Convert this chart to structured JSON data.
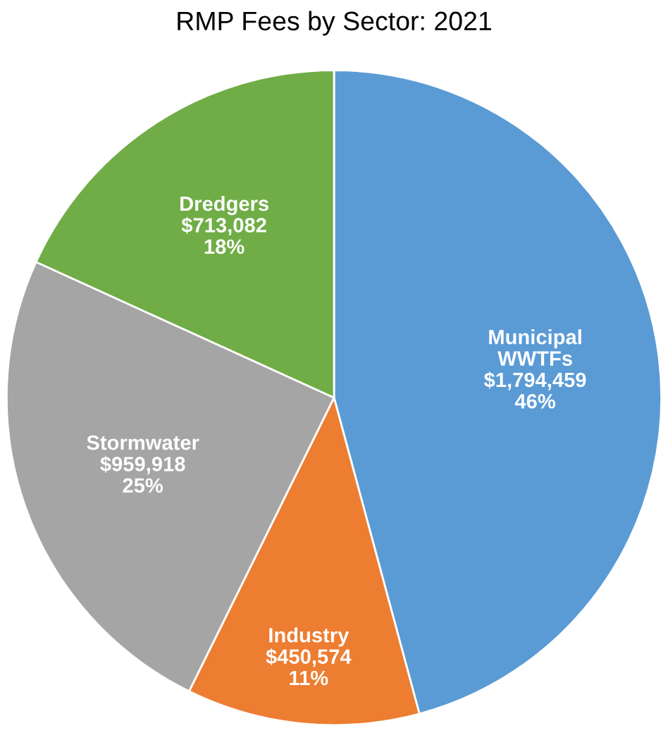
{
  "chart_data": {
    "type": "pie",
    "title": "RMP Fees by Sector: 2021",
    "categories": [
      "Municipal\nWWTFs",
      "Industry",
      "Stormwater",
      "Dredgers"
    ],
    "values": [
      1794459,
      450574,
      959918,
      713082
    ],
    "value_labels": [
      "$1,794,459\n46%",
      "$450,574\n11%",
      "$959,918\n25%",
      "$713,082\n18%"
    ],
    "colors": [
      "#5b9bd5",
      "#ed7d31",
      "#a5a5a5",
      "#70ad47"
    ],
    "legend": false
  }
}
